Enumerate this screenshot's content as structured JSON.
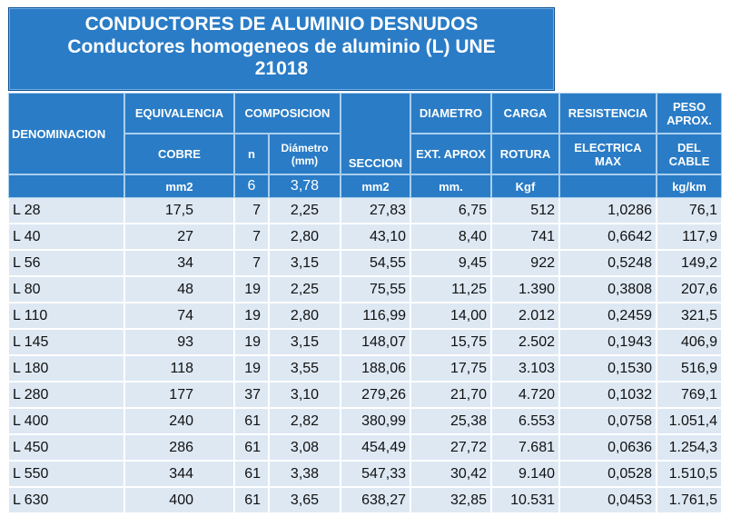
{
  "title": {
    "line1": "CONDUCTORES DE ALUMINIO DESNUDOS",
    "line2": "Conductores homogeneos de aluminio (L) UNE",
    "line3": "21018"
  },
  "header": {
    "denominacion": "DENOMINACION",
    "equivalencia": "EQUIVALENCIA",
    "composicion": "COMPOSICION",
    "seccion": "SECCION",
    "seccion_unit": "mm2",
    "diametro": "DIAMETRO",
    "carga": "CARGA",
    "resistencia": "RESISTENCIA",
    "peso": "PESO APROX.",
    "cobre": "COBRE",
    "n": "n",
    "diametro_mm": "Diámetro (mm)",
    "ext_aprox": "EXT. APROX",
    "rotura": "ROTURA",
    "electrica_max": "ELECTRICA MAX",
    "del_cable": "DEL CABLE",
    "cobre_unit": "mm2",
    "n_value": "6",
    "diam_value": "3,78",
    "ext_unit": "mm.",
    "rotura_unit": "Kgf",
    "resist_unit": "",
    "peso_unit": "kg/km"
  },
  "rows": [
    {
      "den": "L 28",
      "cobre": "17,5",
      "n": "7",
      "diam": "2,25",
      "seccion": "27,83",
      "ext": "6,75",
      "carga": "512",
      "resist": "1,0286",
      "peso": "76,1"
    },
    {
      "den": "L 40",
      "cobre": "27",
      "n": "7",
      "diam": "2,80",
      "seccion": "43,10",
      "ext": "8,40",
      "carga": "741",
      "resist": "0,6642",
      "peso": "117,9"
    },
    {
      "den": "L 56",
      "cobre": "34",
      "n": "7",
      "diam": "3,15",
      "seccion": "54,55",
      "ext": "9,45",
      "carga": "922",
      "resist": "0,5248",
      "peso": "149,2"
    },
    {
      "den": "L 80",
      "cobre": "48",
      "n": "19",
      "diam": "2,25",
      "seccion": "75,55",
      "ext": "11,25",
      "carga": "1.390",
      "resist": "0,3808",
      "peso": "207,6"
    },
    {
      "den": "L 110",
      "cobre": "74",
      "n": "19",
      "diam": "2,80",
      "seccion": "116,99",
      "ext": "14,00",
      "carga": "2.012",
      "resist": "0,2459",
      "peso": "321,5"
    },
    {
      "den": "L 145",
      "cobre": "93",
      "n": "19",
      "diam": "3,15",
      "seccion": "148,07",
      "ext": "15,75",
      "carga": "2.502",
      "resist": "0,1943",
      "peso": "406,9"
    },
    {
      "den": "L 180",
      "cobre": "118",
      "n": "19",
      "diam": "3,55",
      "seccion": "188,06",
      "ext": "17,75",
      "carga": "3.103",
      "resist": "0,1530",
      "peso": "516,9"
    },
    {
      "den": "L 280",
      "cobre": "177",
      "n": "37",
      "diam": "3,10",
      "seccion": "279,26",
      "ext": "21,70",
      "carga": "4.720",
      "resist": "0,1032",
      "peso": "769,1"
    },
    {
      "den": "L 400",
      "cobre": "240",
      "n": "61",
      "diam": "2,82",
      "seccion": "380,99",
      "ext": "25,38",
      "carga": "6.553",
      "resist": "0,0758",
      "peso": "1.051,4"
    },
    {
      "den": "L 450",
      "cobre": "286",
      "n": "61",
      "diam": "3,08",
      "seccion": "454,49",
      "ext": "27,72",
      "carga": "7.681",
      "resist": "0,0636",
      "peso": "1.254,3"
    },
    {
      "den": "L 550",
      "cobre": "344",
      "n": "61",
      "diam": "3,38",
      "seccion": "547,33",
      "ext": "30,42",
      "carga": "9.140",
      "resist": "0,0528",
      "peso": "1.510,5"
    },
    {
      "den": "L 630",
      "cobre": "400",
      "n": "61",
      "diam": "3,65",
      "seccion": "638,27",
      "ext": "32,85",
      "carga": "10.531",
      "resist": "0,0453",
      "peso": "1.761,5"
    }
  ]
}
